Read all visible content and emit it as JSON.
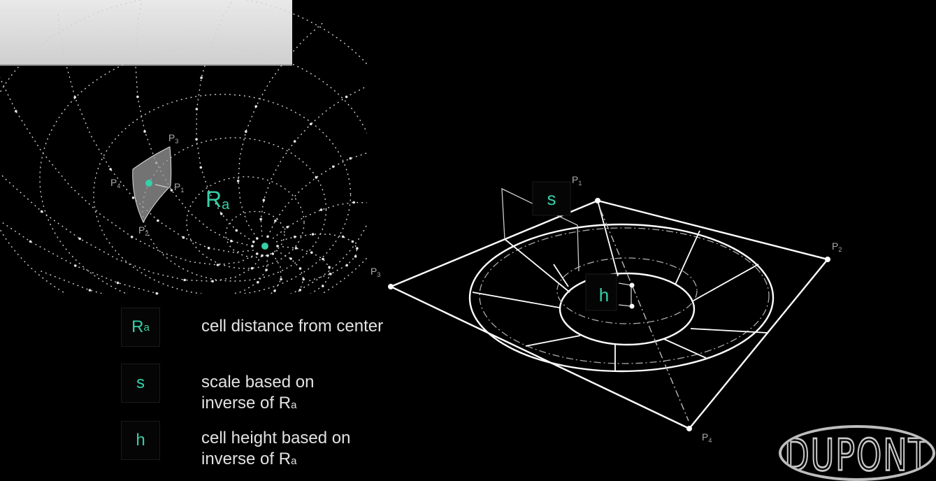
{
  "left_figure": {
    "ra_label": "R",
    "ra_sub": "a",
    "point_labels": [
      "P",
      "P",
      "P",
      "P"
    ],
    "point_subs": [
      "3",
      "4",
      "1",
      "2"
    ]
  },
  "right_figure": {
    "s_label": "s",
    "h_label": "h",
    "point_labels": [
      "P",
      "P",
      "P",
      "P"
    ],
    "point_subs": [
      "1",
      "2",
      "3",
      "4"
    ]
  },
  "legend": [
    {
      "key": "R",
      "key_sub": "a",
      "line1": "cell distance from center",
      "line2": "",
      "line2_sub": ""
    },
    {
      "key": "s",
      "key_sub": "",
      "line1": "scale based on",
      "line2": "inverse of R",
      "line2_sub": "a"
    },
    {
      "key": "h",
      "key_sub": "",
      "line1": "cell height based on",
      "line2": "inverse of R",
      "line2_sub": "a"
    }
  ],
  "logo": {
    "text": "DUPONT"
  },
  "colors": {
    "accent": "#35d0a8",
    "line": "#ffffff",
    "background": "#000000"
  }
}
